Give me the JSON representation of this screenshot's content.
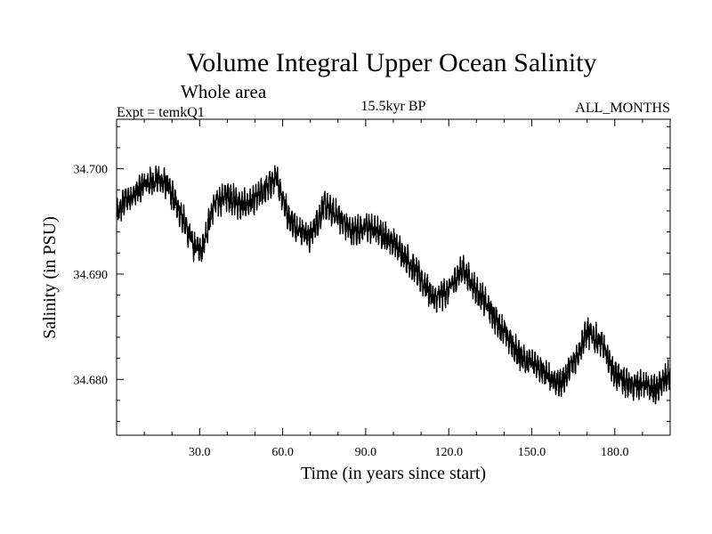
{
  "chart_data": {
    "type": "line",
    "title": "Volume Integral Upper Ocean Salinity",
    "subtitle": "Whole area",
    "annotations": {
      "experiment": "Expt = temkQ1",
      "period": "15.5kyr BP",
      "months": "ALL_MONTHS"
    },
    "xlabel": "Time (in years since start)",
    "ylabel": "Salinity (in PSU)",
    "xlim": [
      0,
      200
    ],
    "ylim": [
      34.6747,
      34.7047
    ],
    "x_ticks": [
      30,
      60,
      90,
      120,
      150,
      180
    ],
    "x_tick_labels": [
      "30.0",
      "60.0",
      "90.0",
      "120.0",
      "150.0",
      "180.0"
    ],
    "y_ticks": [
      34.68,
      34.69,
      34.7
    ],
    "y_tick_labels": [
      "34.680",
      "34.690",
      "34.700"
    ],
    "grid": false,
    "series": [
      {
        "name": "Upper ocean salinity",
        "color": "#000000",
        "trend_x": [
          0,
          3,
          6,
          10,
          15,
          18,
          22,
          25,
          28,
          31,
          35,
          40,
          45,
          50,
          55,
          58,
          62,
          65,
          70,
          75,
          80,
          85,
          90,
          95,
          100,
          105,
          110,
          115,
          120,
          125,
          130,
          135,
          140,
          145,
          150,
          155,
          160,
          165,
          170,
          175,
          180,
          185,
          190,
          195,
          200
        ],
        "trend_y": [
          34.6955,
          34.697,
          34.6975,
          34.6985,
          34.699,
          34.6985,
          34.6965,
          34.6945,
          34.6925,
          34.6925,
          34.6965,
          34.6975,
          34.6965,
          34.697,
          34.6985,
          34.699,
          34.6955,
          34.6945,
          34.6935,
          34.6965,
          34.6955,
          34.694,
          34.6945,
          34.694,
          34.693,
          34.6915,
          34.6895,
          34.6875,
          34.6885,
          34.6905,
          34.6885,
          34.6865,
          34.6845,
          34.6825,
          34.6815,
          34.6805,
          34.6795,
          34.6815,
          34.6845,
          34.6835,
          34.6805,
          34.6795,
          34.6795,
          34.679,
          34.6805
        ],
        "noise_amplitude": 0.0015,
        "samples_per_year": 12
      }
    ]
  }
}
